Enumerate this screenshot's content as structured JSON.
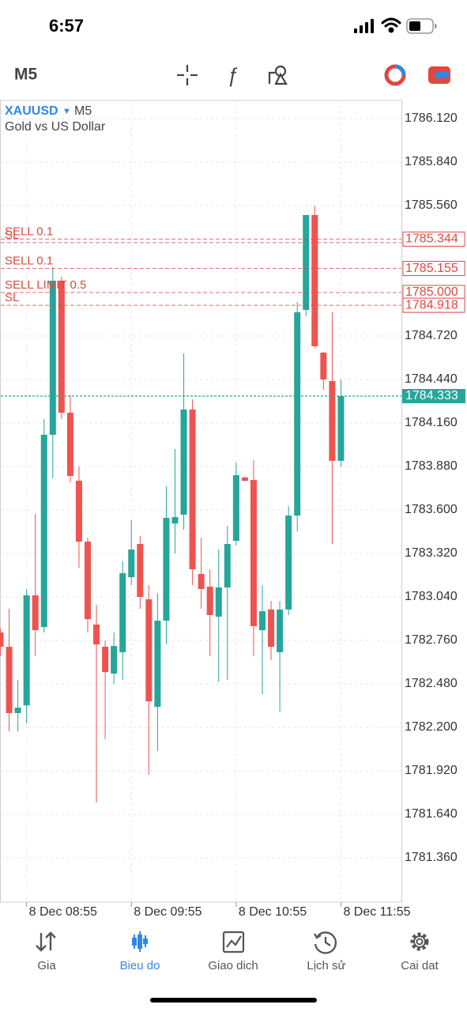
{
  "status_bar": {
    "time": "6:57"
  },
  "toolbar": {
    "timeframe": "M5"
  },
  "chart_data": {
    "type": "candlestick",
    "symbol": "XAUUSD",
    "timeframe": "M5",
    "description": "Gold vs US Dollar",
    "categories": [
      null,
      null,
      null,
      "8 Dec 08:55",
      null,
      null,
      null,
      null,
      null,
      null,
      null,
      null,
      null,
      null,
      null,
      "8 Dec 09:55",
      null,
      null,
      null,
      null,
      null,
      null,
      null,
      null,
      null,
      null,
      null,
      "8 Dec 10:55",
      null,
      null,
      null,
      null,
      null,
      null,
      null,
      null,
      null,
      null,
      null,
      "8 Dec 11:55"
    ],
    "open": [
      1782.811,
      1782.719,
      1782.292,
      1782.342,
      1783.05,
      1782.846,
      1784.084,
      1785.076,
      1784.226,
      1783.788,
      1783.396,
      1782.862,
      1782.719,
      1782.546,
      1782.684,
      1783.167,
      1783.381,
      1783.025,
      1782.332,
      1782.887,
      1783.513,
      1783.569,
      1784.247,
      1783.188,
      1783.106,
      1782.913,
      1783.101,
      1783.401,
      1783.809,
      1783.793,
      1782.826,
      1782.959,
      1782.684,
      1782.959,
      1783.564,
      1784.888,
      1785.499,
      1784.613,
      1784.43,
      1783.916
    ],
    "high": [
      1782.836,
      1782.964,
      1782.505,
      1783.091,
      1783.574,
      1784.185,
      1785.163,
      1785.102,
      1784.338,
      1783.88,
      1783.422,
      1782.989,
      1782.76,
      1782.811,
      1783.269,
      1783.534,
      1783.432,
      1783.116,
      1783.065,
      1783.753,
      1783.992,
      1784.608,
      1784.313,
      1783.422,
      1783.218,
      1783.345,
      1783.498,
      1783.905,
      1783.814,
      1783.921,
      1783.116,
      1783.014,
      1783.014,
      1783.625,
      1784.939,
      1785.499,
      1785.56,
      1784.618,
      1784.873,
      1784.44
    ],
    "low": [
      1782.658,
      1782.174,
      1782.174,
      1782.225,
      1782.658,
      1782.811,
      1783.804,
      1784.185,
      1783.778,
      1783.228,
      1782.811,
      1781.716,
      1782.124,
      1782.48,
      1782.505,
      1783.116,
      1782.964,
      1781.895,
      1782.047,
      1782.734,
      1783.32,
      1783.473,
      1783.116,
      1782.964,
      1782.658,
      1782.495,
      1782.505,
      1783.371,
      1783.783,
      1782.658,
      1782.414,
      1782.633,
      1782.302,
      1782.923,
      1783.462,
      1784.847,
      1784.644,
      1784.374,
      1783.381,
      1783.88
    ],
    "close": [
      1782.719,
      1782.292,
      1782.327,
      1783.05,
      1782.826,
      1784.084,
      1785.076,
      1784.226,
      1783.819,
      1783.396,
      1782.897,
      1782.734,
      1782.556,
      1782.724,
      1783.193,
      1783.345,
      1783.04,
      1782.368,
      1782.887,
      1783.549,
      1783.554,
      1784.247,
      1783.218,
      1783.091,
      1782.923,
      1783.101,
      1783.381,
      1783.824,
      1783.788,
      1782.852,
      1782.948,
      1782.719,
      1782.959,
      1783.564,
      1784.873,
      1785.499,
      1784.654,
      1784.44,
      1783.916,
      1784.333
    ],
    "up_color": "#26a69a",
    "down_color": "#ef5350",
    "ylim": [
      1781.075,
      1786.237
    ],
    "yticks": [
      {
        "value": 1786.12,
        "label": "1786.120"
      },
      {
        "value": 1785.84,
        "label": "1785.840"
      },
      {
        "value": 1785.56,
        "label": "1785.560"
      },
      {
        "value": 1784.72,
        "label": "1784.720"
      },
      {
        "value": 1784.44,
        "label": "1784.440"
      },
      {
        "value": 1784.16,
        "label": "1784.160"
      },
      {
        "value": 1783.88,
        "label": "1783.880"
      },
      {
        "value": 1783.6,
        "label": "1783.600"
      },
      {
        "value": 1783.32,
        "label": "1783.320"
      },
      {
        "value": 1783.04,
        "label": "1783.040"
      },
      {
        "value": 1782.76,
        "label": "1782.760"
      },
      {
        "value": 1782.48,
        "label": "1782.480"
      },
      {
        "value": 1782.2,
        "label": "1782.200"
      },
      {
        "value": 1781.92,
        "label": "1781.920"
      },
      {
        "value": 1781.64,
        "label": "1781.640"
      },
      {
        "value": 1781.36,
        "label": "1781.360"
      }
    ],
    "grid": true,
    "level_color": "#e0483e",
    "levels": [
      {
        "label": "SELL 0.1",
        "value": 1785.344,
        "value_label": "1785.344"
      },
      {
        "label": "SL",
        "value": 1785.321
      },
      {
        "label": "SELL 0.1",
        "value": 1785.155,
        "value_label": "1785.155"
      },
      {
        "label": "SELL LIMIT 0.5",
        "value": 1785.0,
        "value_label": "1785.000"
      },
      {
        "label": "SL",
        "value": 1784.918,
        "value_label": "1784.918"
      }
    ],
    "current_price": {
      "value": 1784.333,
      "label": "1784.333"
    }
  },
  "tabs": [
    {
      "label": "Gia",
      "active": false
    },
    {
      "label": "Bieu do",
      "active": true
    },
    {
      "label": "Giao dich",
      "active": false
    },
    {
      "label": "Lịch sử",
      "active": false
    },
    {
      "label": "Cai dat",
      "active": false
    }
  ]
}
